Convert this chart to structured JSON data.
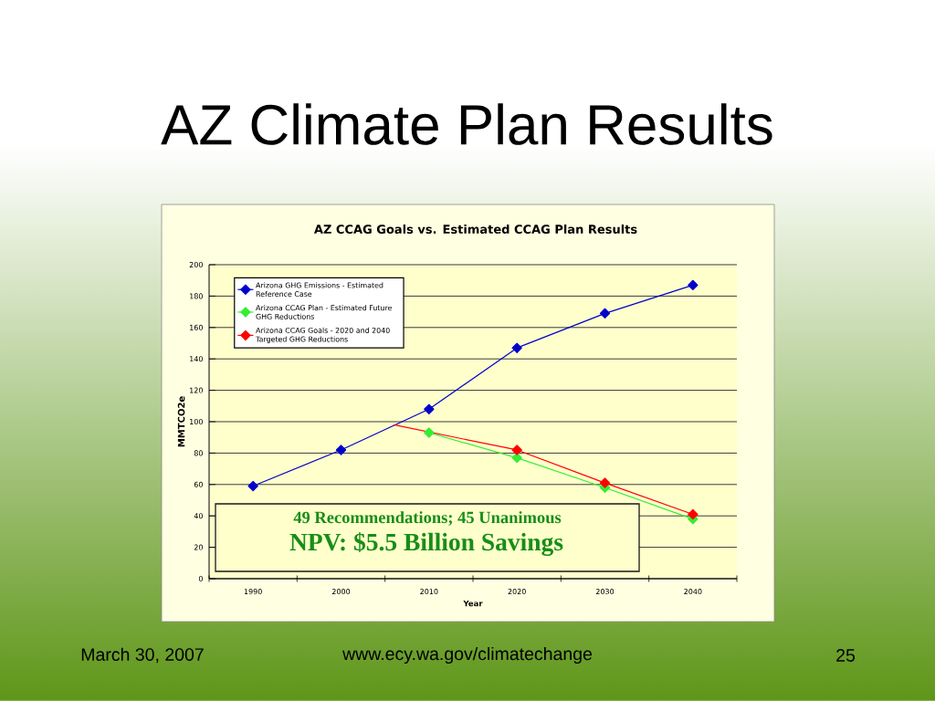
{
  "chart_data": {
    "type": "line",
    "title": "AZ Climate Plan Results",
    "subtitle": "AZ CCAG Goals vs. Estimated CCAG Plan Results",
    "xlabel": "Year",
    "ylabel": "MMTCO2e",
    "x": [
      1990,
      2000,
      2010,
      2020,
      2030,
      2040
    ],
    "series": [
      {
        "name": "Arizona GHG Emissions - Estimated Reference Case",
        "color": "#0000cc",
        "values": [
          59,
          82,
          108,
          147,
          169,
          187
        ]
      },
      {
        "name": "Arizona CCAG Plan - Estimated Future GHG Reductions",
        "color": "#33ee33",
        "x": [
          2010,
          2020,
          2030,
          2040
        ],
        "values": [
          93,
          77,
          58,
          38
        ]
      },
      {
        "name": "Arizona CCAG Goals - 2020 and 2040 Targeted GHG Reductions",
        "color": "#ff0000",
        "x": [
          2020,
          2030,
          2040
        ],
        "values": [
          82,
          61,
          41
        ]
      },
      {
        "color": "#ff0000",
        "x": [
          2006,
          2020
        ],
        "values": [
          98,
          82
        ],
        "marker": "none"
      }
    ],
    "xlim": [
      1985,
      2045
    ],
    "xticks": [
      {
        "value": 1985,
        "label": null
      },
      1990,
      {
        "value": 1995,
        "label": null
      },
      2000,
      {
        "value": 2005,
        "label": null
      },
      2010,
      {
        "value": 2015,
        "label": null
      },
      2020,
      {
        "value": 2025,
        "label": null
      },
      2030,
      {
        "value": 2035,
        "label": null
      },
      2040,
      {
        "value": 2045,
        "label": null
      }
    ],
    "ylim": [
      0,
      200
    ],
    "yticks": [
      0,
      20,
      40,
      60,
      80,
      100,
      120,
      140,
      160,
      180,
      200
    ],
    "grid": "y",
    "legend": "top left",
    "marker": "diamond",
    "line_style": "solid",
    "annotations": [
      "49 Recommendations; 45 Unanimous",
      "NPV: $5.5 Billion Savings",
      "March 30, 2007",
      "www.ecy.wa.gov/climatechange",
      "25"
    ]
  }
}
